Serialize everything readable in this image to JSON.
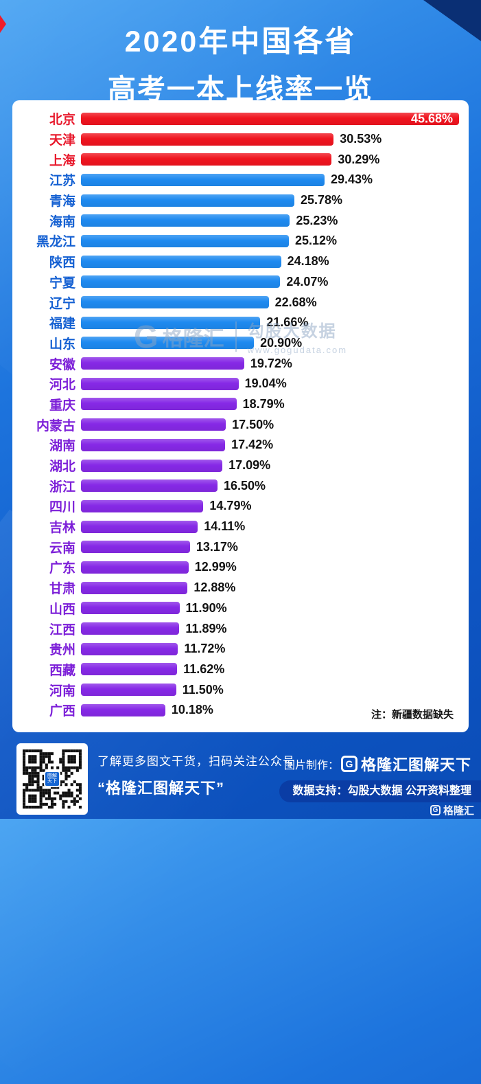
{
  "title": {
    "line1": "2020年中国各省",
    "line2": "高考一本上线率一览"
  },
  "note": "注：新疆数据缺失",
  "watermark": {
    "logo_letter": "G",
    "logo_text": "格隆汇",
    "brand": "勾股大数据",
    "url": "www.gogudata.com"
  },
  "footer": {
    "qr_center_label": "图解天下",
    "caption_line1": "了解更多图文干货，扫码关注公众号",
    "caption_line2": "“格隆汇图解天下”",
    "credit_label": "图片制作：",
    "credit_logo_letter": "G",
    "credit_brand": "格隆汇图解天下",
    "support_text": "数据支持：勾股大数据  公开资料整理",
    "corner_logo_letter": "G",
    "corner_logo_text": "格隆汇"
  },
  "chart_data": {
    "type": "bar",
    "orientation": "horizontal",
    "title": "2020年中国各省高考一本上线率一览",
    "value_suffix": "%",
    "xlim": [
      0,
      45.68
    ],
    "grid": false,
    "legend": false,
    "groups": {
      "red": "#f0141f",
      "blue": "#1e8af0",
      "purple": "#8629e6"
    },
    "label_colors": {
      "red": "#e8192c",
      "blue": "#1460d2",
      "purple": "#7c1fd8"
    },
    "rows": [
      {
        "label": "北京",
        "value": 45.68,
        "display": "45.68%",
        "group": "red",
        "value_inside": true
      },
      {
        "label": "天津",
        "value": 30.53,
        "display": "30.53%",
        "group": "red"
      },
      {
        "label": "上海",
        "value": 30.29,
        "display": "30.29%",
        "group": "red"
      },
      {
        "label": "江苏",
        "value": 29.43,
        "display": "29.43%",
        "group": "blue"
      },
      {
        "label": "青海",
        "value": 25.78,
        "display": "25.78%",
        "group": "blue"
      },
      {
        "label": "海南",
        "value": 25.23,
        "display": "25.23%",
        "group": "blue"
      },
      {
        "label": "黑龙江",
        "value": 25.12,
        "display": "25.12%",
        "group": "blue"
      },
      {
        "label": "陕西",
        "value": 24.18,
        "display": "24.18%",
        "group": "blue"
      },
      {
        "label": "宁夏",
        "value": 24.07,
        "display": "24.07%",
        "group": "blue"
      },
      {
        "label": "辽宁",
        "value": 22.68,
        "display": "22.68%",
        "group": "blue"
      },
      {
        "label": "福建",
        "value": 21.66,
        "display": "21.66%",
        "group": "blue"
      },
      {
        "label": "山东",
        "value": 20.9,
        "display": "20.90%",
        "group": "blue"
      },
      {
        "label": "安徽",
        "value": 19.72,
        "display": "19.72%",
        "group": "purple"
      },
      {
        "label": "河北",
        "value": 19.04,
        "display": "19.04%",
        "group": "purple"
      },
      {
        "label": "重庆",
        "value": 18.79,
        "display": "18.79%",
        "group": "purple"
      },
      {
        "label": "内蒙古",
        "value": 17.5,
        "display": "17.50%",
        "group": "purple"
      },
      {
        "label": "湖南",
        "value": 17.42,
        "display": "17.42%",
        "group": "purple"
      },
      {
        "label": "湖北",
        "value": 17.09,
        "display": "17.09%",
        "group": "purple"
      },
      {
        "label": "浙江",
        "value": 16.5,
        "display": "16.50%",
        "group": "purple"
      },
      {
        "label": "四川",
        "value": 14.79,
        "display": "14.79%",
        "group": "purple"
      },
      {
        "label": "吉林",
        "value": 14.11,
        "display": "14.11%",
        "group": "purple"
      },
      {
        "label": "云南",
        "value": 13.17,
        "display": "13.17%",
        "group": "purple"
      },
      {
        "label": "广东",
        "value": 12.99,
        "display": "12.99%",
        "group": "purple"
      },
      {
        "label": "甘肃",
        "value": 12.88,
        "display": "12.88%",
        "group": "purple"
      },
      {
        "label": "山西",
        "value": 11.9,
        "display": "11.90%",
        "group": "purple"
      },
      {
        "label": "江西",
        "value": 11.89,
        "display": "11.89%",
        "group": "purple"
      },
      {
        "label": "贵州",
        "value": 11.72,
        "display": "11.72%",
        "group": "purple"
      },
      {
        "label": "西藏",
        "value": 11.62,
        "display": "11.62%",
        "group": "purple"
      },
      {
        "label": "河南",
        "value": 11.5,
        "display": "11.50%",
        "group": "purple"
      },
      {
        "label": "广西",
        "value": 10.18,
        "display": "10.18%",
        "group": "purple"
      }
    ]
  }
}
